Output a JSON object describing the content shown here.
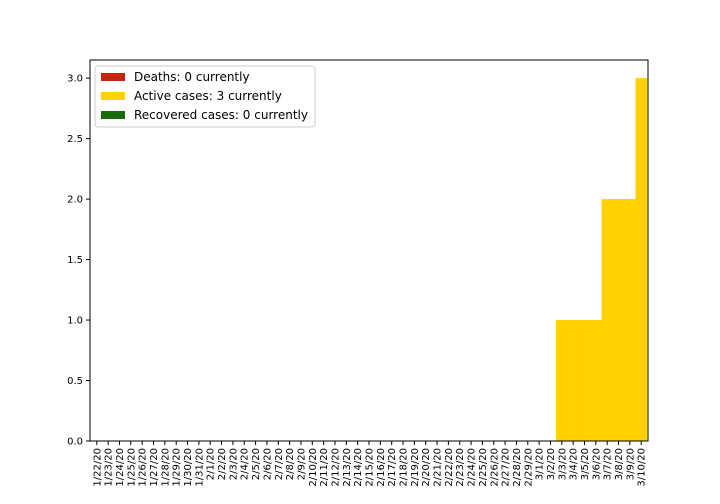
{
  "chart_data": {
    "type": "bar",
    "stacked": true,
    "categories": [
      "1/22/20",
      "1/23/20",
      "1/24/20",
      "1/25/20",
      "1/26/20",
      "1/27/20",
      "1/28/20",
      "1/29/20",
      "1/30/20",
      "1/31/20",
      "2/1/20",
      "2/2/20",
      "2/3/20",
      "2/4/20",
      "2/5/20",
      "2/6/20",
      "2/7/20",
      "2/8/20",
      "2/9/20",
      "2/10/20",
      "2/11/20",
      "2/12/20",
      "2/13/20",
      "2/14/20",
      "2/15/20",
      "2/16/20",
      "2/17/20",
      "2/18/20",
      "2/19/20",
      "2/20/20",
      "2/21/20",
      "2/22/20",
      "2/23/20",
      "2/24/20",
      "2/25/20",
      "2/26/20",
      "2/27/20",
      "2/28/20",
      "2/29/20",
      "3/1/20",
      "3/2/20",
      "3/3/20",
      "3/4/20",
      "3/5/20",
      "3/6/20",
      "3/7/20",
      "3/8/20",
      "3/9/20",
      "3/10/20"
    ],
    "series": [
      {
        "name": "Deaths: 0 currently",
        "color": "#c1280f",
        "values": [
          0,
          0,
          0,
          0,
          0,
          0,
          0,
          0,
          0,
          0,
          0,
          0,
          0,
          0,
          0,
          0,
          0,
          0,
          0,
          0,
          0,
          0,
          0,
          0,
          0,
          0,
          0,
          0,
          0,
          0,
          0,
          0,
          0,
          0,
          0,
          0,
          0,
          0,
          0,
          0,
          0,
          0,
          0,
          0,
          0,
          0,
          0,
          0,
          0
        ]
      },
      {
        "name": "Active cases: 3 currently",
        "color": "#ffd100",
        "values": [
          0,
          0,
          0,
          0,
          0,
          0,
          0,
          0,
          0,
          0,
          0,
          0,
          0,
          0,
          0,
          0,
          0,
          0,
          0,
          0,
          0,
          0,
          0,
          0,
          0,
          0,
          0,
          0,
          0,
          0,
          0,
          0,
          0,
          0,
          0,
          0,
          0,
          0,
          0,
          0,
          0,
          1,
          1,
          1,
          1,
          2,
          2,
          2,
          3
        ]
      },
      {
        "name": "Recovered cases: 0 currently",
        "color": "#1a6b0e",
        "values": [
          0,
          0,
          0,
          0,
          0,
          0,
          0,
          0,
          0,
          0,
          0,
          0,
          0,
          0,
          0,
          0,
          0,
          0,
          0,
          0,
          0,
          0,
          0,
          0,
          0,
          0,
          0,
          0,
          0,
          0,
          0,
          0,
          0,
          0,
          0,
          0,
          0,
          0,
          0,
          0,
          0,
          0,
          0,
          0,
          0,
          0,
          0,
          0,
          0
        ]
      }
    ],
    "ylim": [
      0,
      3.15
    ],
    "yticks": [
      "0.0",
      "0.5",
      "1.0",
      "1.5",
      "2.0",
      "2.5",
      "3.0"
    ],
    "grid": false,
    "legend_position": "top-left"
  }
}
